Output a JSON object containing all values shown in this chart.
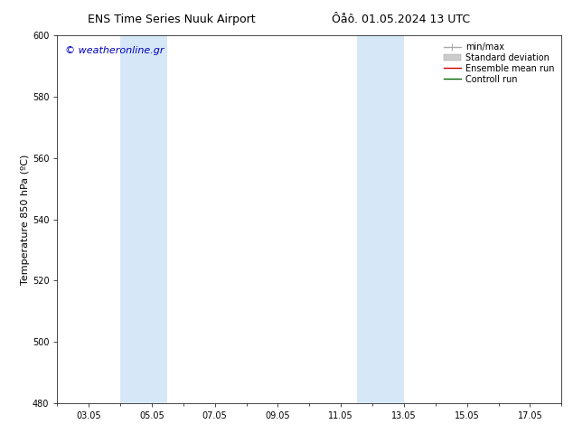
{
  "title_left": "ENS Time Series Nuuk Airport",
  "title_right": "Ôåô. 01.05.2024 13 UTC",
  "ylabel": "Temperature 850 hPa (ºC)",
  "ylim": [
    480,
    600
  ],
  "yticks": [
    480,
    500,
    520,
    540,
    560,
    580,
    600
  ],
  "xlim_days": [
    2,
    18
  ],
  "xtick_day_positions": [
    3,
    5,
    7,
    9,
    11,
    13,
    15,
    17
  ],
  "xtick_labels": [
    "03.05",
    "05.05",
    "07.05",
    "09.05",
    "11.05",
    "13.05",
    "15.05",
    "17.05"
  ],
  "shaded_bands": [
    {
      "x_start": 4.0,
      "x_end": 5.5
    },
    {
      "x_start": 11.5,
      "x_end": 13.0
    }
  ],
  "shaded_color": "#d6e8f7",
  "legend_entries": [
    {
      "label": "min/max",
      "color": "#aaaaaa",
      "lw": 1.0,
      "style": "line_with_cap"
    },
    {
      "label": "Standard deviation",
      "color": "#cccccc",
      "lw": 5,
      "style": "bar"
    },
    {
      "label": "Ensemble mean run",
      "color": "#cc0000",
      "lw": 1.0,
      "style": "line"
    },
    {
      "label": "Controll run",
      "color": "#006600",
      "lw": 1.0,
      "style": "line"
    }
  ],
  "watermark_text": "© weatheronline.gr",
  "watermark_color": "#0000bb",
  "watermark_fontsize": 8,
  "bg_color": "#ffffff",
  "plot_bg_color": "#ffffff",
  "border_color": "#000000",
  "title_fontsize": 9,
  "axis_fontsize": 8,
  "tick_fontsize": 7,
  "legend_fontsize": 7
}
